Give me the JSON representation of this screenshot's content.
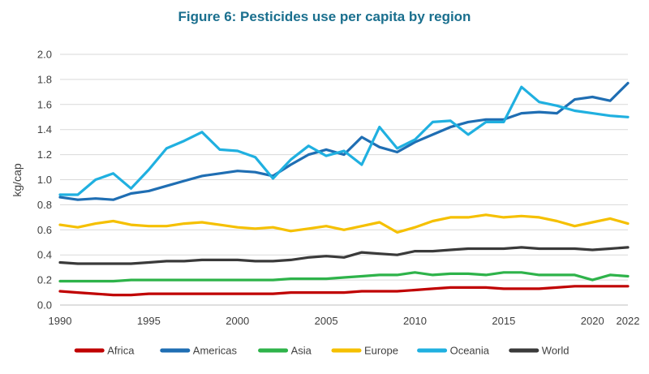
{
  "chart_data": {
    "type": "line",
    "title": "Figure 6: Pesticides use per capita by region",
    "xlabel": "",
    "ylabel": "kg/cap",
    "xlim": [
      1990,
      2022
    ],
    "ylim": [
      0,
      2.0
    ],
    "x_ticks": [
      1990,
      1995,
      2000,
      2005,
      2010,
      2015,
      2020,
      2022
    ],
    "y_ticks": [
      0.0,
      0.2,
      0.4,
      0.6,
      0.8,
      1.0,
      1.2,
      1.4,
      1.6,
      1.8,
      2.0
    ],
    "y_tick_labels": [
      "0.0",
      "0.2",
      "0.4",
      "0.6",
      "0.8",
      "1.0",
      "1.2",
      "1.4",
      "1.6",
      "1.8",
      "2.0"
    ],
    "grid": true,
    "legend_position": "bottom",
    "x": [
      1990,
      1991,
      1992,
      1993,
      1994,
      1995,
      1996,
      1997,
      1998,
      1999,
      2000,
      2001,
      2002,
      2003,
      2004,
      2005,
      2006,
      2007,
      2008,
      2009,
      2010,
      2011,
      2012,
      2013,
      2014,
      2015,
      2016,
      2017,
      2018,
      2019,
      2020,
      2021,
      2022
    ],
    "series": [
      {
        "name": "Africa",
        "color": "#c00000",
        "values": [
          0.11,
          0.1,
          0.09,
          0.08,
          0.08,
          0.09,
          0.09,
          0.09,
          0.09,
          0.09,
          0.09,
          0.09,
          0.09,
          0.1,
          0.1,
          0.1,
          0.1,
          0.11,
          0.11,
          0.11,
          0.12,
          0.13,
          0.14,
          0.14,
          0.14,
          0.13,
          0.13,
          0.13,
          0.14,
          0.15,
          0.15,
          0.15,
          0.15
        ]
      },
      {
        "name": "Americas",
        "color": "#1f6eb3",
        "values": [
          0.86,
          0.84,
          0.85,
          0.84,
          0.89,
          0.91,
          0.95,
          0.99,
          1.03,
          1.05,
          1.07,
          1.06,
          1.03,
          1.12,
          1.2,
          1.24,
          1.2,
          1.34,
          1.26,
          1.22,
          1.3,
          1.36,
          1.42,
          1.46,
          1.48,
          1.48,
          1.53,
          1.54,
          1.53,
          1.64,
          1.66,
          1.63,
          1.77
        ]
      },
      {
        "name": "Asia",
        "color": "#2eb34a",
        "values": [
          0.19,
          0.19,
          0.19,
          0.19,
          0.2,
          0.2,
          0.2,
          0.2,
          0.2,
          0.2,
          0.2,
          0.2,
          0.2,
          0.21,
          0.21,
          0.21,
          0.22,
          0.23,
          0.24,
          0.24,
          0.26,
          0.24,
          0.25,
          0.25,
          0.24,
          0.26,
          0.26,
          0.24,
          0.24,
          0.24,
          0.2,
          0.24,
          0.23
        ]
      },
      {
        "name": "Europe",
        "color": "#f5c000",
        "values": [
          0.64,
          0.62,
          0.65,
          0.67,
          0.64,
          0.63,
          0.63,
          0.65,
          0.66,
          0.64,
          0.62,
          0.61,
          0.62,
          0.59,
          0.61,
          0.63,
          0.6,
          0.63,
          0.66,
          0.58,
          0.62,
          0.67,
          0.7,
          0.7,
          0.72,
          0.7,
          0.71,
          0.7,
          0.67,
          0.63,
          0.66,
          0.69,
          0.65
        ]
      },
      {
        "name": "Oceania",
        "color": "#20b0e0",
        "values": [
          0.88,
          0.88,
          1.0,
          1.05,
          0.93,
          1.08,
          1.25,
          1.31,
          1.38,
          1.24,
          1.23,
          1.18,
          1.01,
          1.16,
          1.27,
          1.19,
          1.23,
          1.12,
          1.42,
          1.25,
          1.32,
          1.46,
          1.47,
          1.36,
          1.46,
          1.46,
          1.74,
          1.62,
          1.59,
          1.55,
          1.53,
          1.51,
          1.5
        ]
      },
      {
        "name": "World",
        "color": "#3a3a3a",
        "values": [
          0.34,
          0.33,
          0.33,
          0.33,
          0.33,
          0.34,
          0.35,
          0.35,
          0.36,
          0.36,
          0.36,
          0.35,
          0.35,
          0.36,
          0.38,
          0.39,
          0.38,
          0.42,
          0.41,
          0.4,
          0.43,
          0.43,
          0.44,
          0.45,
          0.45,
          0.45,
          0.46,
          0.45,
          0.45,
          0.45,
          0.44,
          0.45,
          0.46
        ]
      }
    ]
  }
}
